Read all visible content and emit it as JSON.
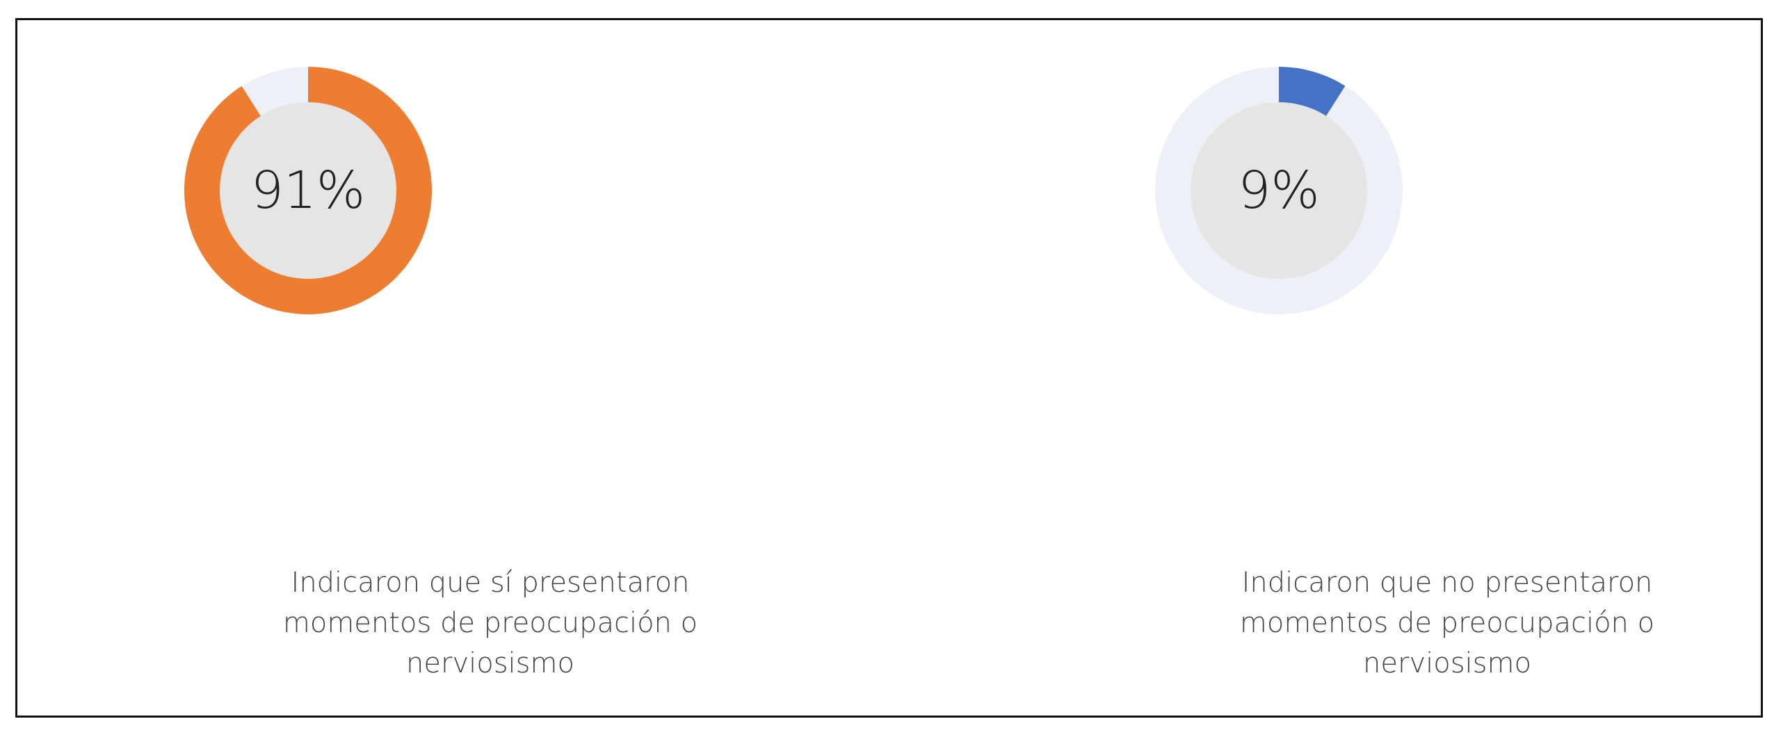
{
  "colors": {
    "orange": "#ED7D31",
    "blue": "#4472C4",
    "track": "#EDF0F7",
    "inner": "#E5E5E5"
  },
  "chart_data": [
    {
      "type": "pie",
      "variant": "donut",
      "title": "",
      "center_label": "91%",
      "value": 91,
      "remainder": 9,
      "segments": [
        {
          "label": "sí",
          "value": 91,
          "color": "#ED7D31"
        },
        {
          "label": "",
          "value": 9,
          "color": "#EDF0F7"
        }
      ],
      "caption_lines": [
        "Indicaron que sí presentaron",
        "momentos de preocupación o",
        "nerviosismo"
      ]
    },
    {
      "type": "pie",
      "variant": "donut",
      "title": "",
      "center_label": "9%",
      "value": 9,
      "remainder": 91,
      "segments": [
        {
          "label": "no",
          "value": 9,
          "color": "#4472C4"
        },
        {
          "label": "",
          "value": 91,
          "color": "#EDF0F7"
        }
      ],
      "caption_lines": [
        "Indicaron que no presentaron",
        "momentos de preocupación o",
        "nerviosismo"
      ]
    }
  ]
}
